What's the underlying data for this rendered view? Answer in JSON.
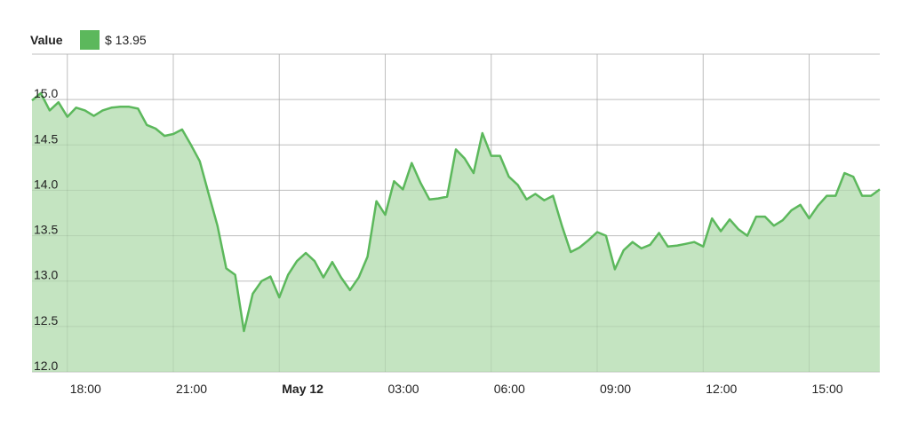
{
  "legend": {
    "label": "Value",
    "value_text": "$ 13.95",
    "swatch_color": "#5cb85c"
  },
  "colors": {
    "line": "#5cb85c",
    "fill": "#c4e4c1",
    "grid": "#d0d0d0"
  },
  "chart_data": {
    "type": "area",
    "title": "",
    "xlabel": "",
    "ylabel": "",
    "grid": true,
    "legend_position": "top-left",
    "xlim": [
      "05-11 17:00",
      "05-12 17:00"
    ],
    "ylim": [
      12.0,
      15.5
    ],
    "yticks": [
      "12.0",
      "12.5",
      "13.0",
      "13.5",
      "14.0",
      "14.5",
      "15.0"
    ],
    "xticks": [
      {
        "t": "05-11 18:00",
        "label": "18:00",
        "bold": false
      },
      {
        "t": "05-11 21:00",
        "label": "21:00",
        "bold": false
      },
      {
        "t": "05-12 00:00",
        "label": "May 12",
        "bold": true
      },
      {
        "t": "05-12 03:00",
        "label": "03:00",
        "bold": false
      },
      {
        "t": "05-12 06:00",
        "label": "06:00",
        "bold": false
      },
      {
        "t": "05-12 09:00",
        "label": "09:00",
        "bold": false
      },
      {
        "t": "05-12 12:00",
        "label": "12:00",
        "bold": false
      },
      {
        "t": "05-12 15:00",
        "label": "15:00",
        "bold": false
      }
    ],
    "series": [
      {
        "name": "Value",
        "x": [
          "05-11 17:00",
          "05-11 17:15",
          "05-11 17:30",
          "05-11 17:45",
          "05-11 18:00",
          "05-11 18:15",
          "05-11 18:30",
          "05-11 18:45",
          "05-11 19:00",
          "05-11 19:15",
          "05-11 19:30",
          "05-11 19:45",
          "05-11 20:00",
          "05-11 20:15",
          "05-11 20:30",
          "05-11 20:45",
          "05-11 21:00",
          "05-11 21:15",
          "05-11 21:30",
          "05-11 21:45",
          "05-11 22:00",
          "05-11 22:15",
          "05-11 22:30",
          "05-11 22:45",
          "05-11 23:00",
          "05-11 23:15",
          "05-11 23:30",
          "05-11 23:45",
          "05-12 00:00",
          "05-12 00:15",
          "05-12 00:30",
          "05-12 00:45",
          "05-12 01:00",
          "05-12 01:15",
          "05-12 01:30",
          "05-12 01:45",
          "05-12 02:00",
          "05-12 02:15",
          "05-12 02:30",
          "05-12 02:45",
          "05-12 03:00",
          "05-12 03:15",
          "05-12 03:30",
          "05-12 03:45",
          "05-12 04:00",
          "05-12 04:15",
          "05-12 04:30",
          "05-12 04:45",
          "05-12 05:00",
          "05-12 05:15",
          "05-12 05:30",
          "05-12 05:45",
          "05-12 06:00",
          "05-12 06:15",
          "05-12 06:30",
          "05-12 06:45",
          "05-12 07:00",
          "05-12 07:15",
          "05-12 07:30",
          "05-12 07:45",
          "05-12 08:00",
          "05-12 08:15",
          "05-12 08:30",
          "05-12 08:45",
          "05-12 09:00",
          "05-12 09:15",
          "05-12 09:30",
          "05-12 09:45",
          "05-12 10:00",
          "05-12 10:15",
          "05-12 10:30",
          "05-12 10:45",
          "05-12 11:00",
          "05-12 11:15",
          "05-12 11:30",
          "05-12 11:45",
          "05-12 12:00",
          "05-12 12:15",
          "05-12 12:30",
          "05-12 12:45",
          "05-12 13:00",
          "05-12 13:15",
          "05-12 13:30",
          "05-12 13:45",
          "05-12 14:00",
          "05-12 14:15",
          "05-12 14:30",
          "05-12 14:45",
          "05-12 15:00",
          "05-12 15:15",
          "05-12 15:30",
          "05-12 15:45",
          "05-12 16:00",
          "05-12 16:15",
          "05-12 16:30",
          "05-12 16:45",
          "05-12 17:00"
        ],
        "values": [
          14.99,
          15.07,
          14.88,
          14.97,
          14.81,
          14.91,
          14.88,
          14.82,
          14.88,
          14.91,
          14.92,
          14.92,
          14.9,
          14.72,
          14.68,
          14.6,
          14.62,
          14.67,
          14.5,
          14.32,
          13.96,
          13.61,
          13.14,
          13.07,
          12.45,
          12.86,
          13.0,
          13.05,
          12.82,
          13.07,
          13.22,
          13.31,
          13.22,
          13.04,
          13.21,
          13.04,
          12.9,
          13.04,
          13.27,
          13.88,
          13.73,
          14.1,
          14.01,
          14.3,
          14.08,
          13.9,
          13.91,
          13.93,
          14.45,
          14.35,
          14.19,
          14.63,
          14.38,
          14.38,
          14.15,
          14.06,
          13.9,
          13.96,
          13.89,
          13.94,
          13.61,
          13.32,
          13.37,
          13.45,
          13.54,
          13.5,
          13.13,
          13.34,
          13.43,
          13.36,
          13.4,
          13.53,
          13.38,
          13.39,
          13.41,
          13.43,
          13.38,
          13.69,
          13.55,
          13.68,
          13.57,
          13.5,
          13.71,
          13.71,
          13.61,
          13.67,
          13.78,
          13.84,
          13.69,
          13.83,
          13.94,
          13.94,
          14.19,
          14.15,
          13.94,
          13.94,
          14.01
        ]
      }
    ]
  }
}
